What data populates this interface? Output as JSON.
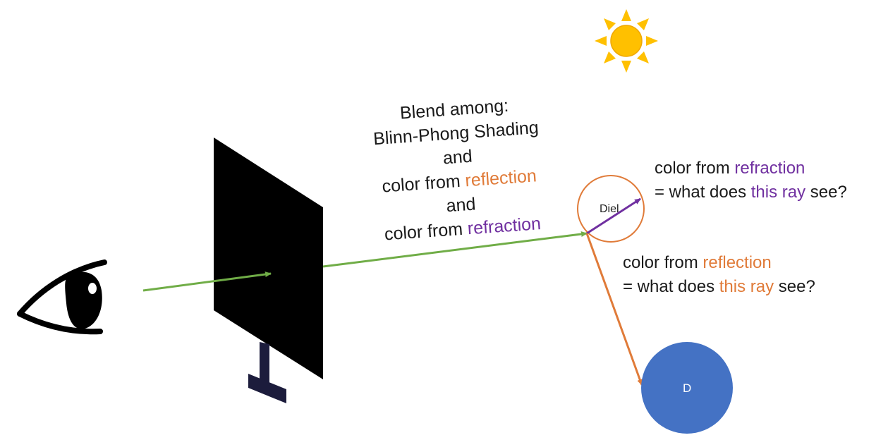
{
  "blend_block": {
    "line1": "Blend among:",
    "line2": "Blinn-Phong Shading",
    "line3": "and",
    "line4_prefix": "color from ",
    "line4_highlight": "reflection",
    "line5": "and",
    "line6_prefix": "color from ",
    "line6_highlight": "refraction"
  },
  "refraction_note": {
    "line1_prefix": "color from ",
    "line1_highlight": "refraction",
    "line2_prefix": "= what does ",
    "line2_highlight": "this ray",
    "line2_suffix": " see?"
  },
  "reflection_note": {
    "line1_prefix": "color from ",
    "line1_highlight": "reflection",
    "line2_prefix": "= what does ",
    "line2_highlight": "this ray",
    "line2_suffix": " see?"
  },
  "dielectric_label": "Diel",
  "diffuse_label": "D",
  "icons": {
    "eye": "eye-icon",
    "sun": "sun-icon",
    "screen": "image-plane-icon"
  },
  "colors": {
    "primary_ray": "#70ad47",
    "reflection": "#e07b39",
    "refraction": "#7030a0",
    "diffuse_sphere": "#4472c4",
    "sun": "#ffc000",
    "screen": "#000000",
    "screen_stand": "#1c1c3c"
  }
}
